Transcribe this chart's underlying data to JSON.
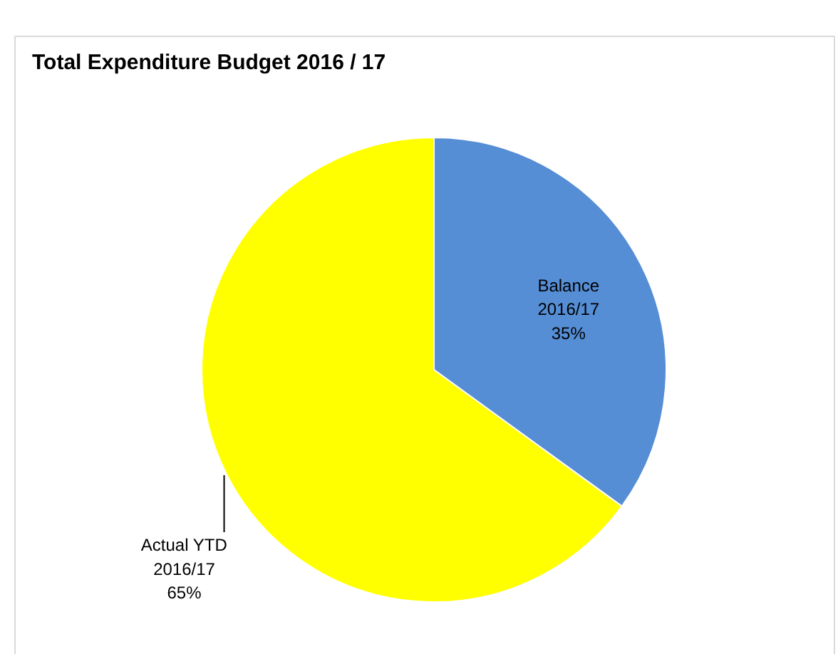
{
  "chart_data": {
    "type": "pie",
    "title": "Total Expenditure Budget 2016 / 17",
    "categories": [
      "Balance 2016/17",
      "Actual YTD 2016/17"
    ],
    "values": [
      35,
      65
    ],
    "colors": [
      "#558ed5",
      "#ffff00"
    ],
    "value_labels": [
      "35%",
      "65%"
    ]
  }
}
